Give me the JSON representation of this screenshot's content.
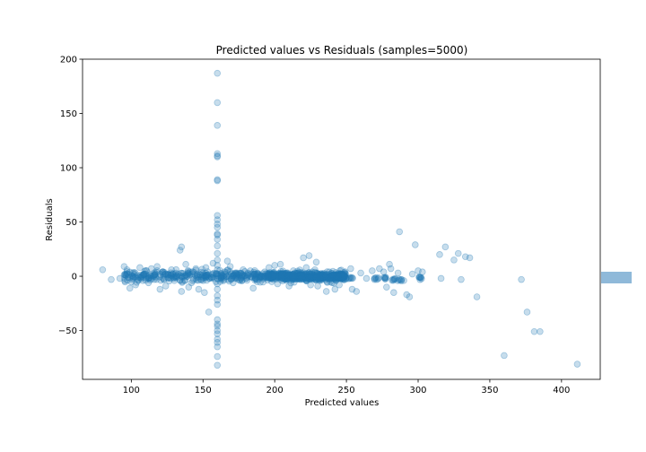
{
  "chart_data": {
    "type": "scatter",
    "title": "Predicted values vs Residuals (samples=5000)",
    "xlabel": "Predicted values",
    "ylabel": "Residuals",
    "xlim": [
      66,
      427
    ],
    "ylim": [
      -95,
      200
    ],
    "xticks": [
      100,
      150,
      200,
      250,
      300,
      350,
      400
    ],
    "yticks": [
      -50,
      0,
      50,
      100,
      150,
      200
    ],
    "ytick_labels": [
      "−50",
      "0",
      "50",
      "100",
      "150",
      "200"
    ],
    "grid": false,
    "legend": "none",
    "colors": {
      "marker": "#1f77b4",
      "marker_alpha": 0.25,
      "side_marker": "#8fb9d9"
    },
    "series": [
      {
        "points": [
          [
            80,
            6
          ],
          [
            86,
            -3
          ],
          [
            92,
            -2
          ],
          [
            95,
            9
          ],
          [
            97,
            6
          ],
          [
            99,
            -11
          ],
          [
            101,
            3
          ],
          [
            103,
            -8
          ],
          [
            106,
            8
          ],
          [
            108,
            -4
          ],
          [
            110,
            2
          ],
          [
            112,
            -6
          ],
          [
            114,
            7
          ],
          [
            116,
            -3
          ],
          [
            118,
            9
          ],
          [
            120,
            -12
          ],
          [
            122,
            4
          ],
          [
            124,
            -9
          ],
          [
            126,
            1
          ],
          [
            128,
            6
          ],
          [
            130,
            -4
          ],
          [
            134,
            24
          ],
          [
            135,
            27
          ],
          [
            135,
            -14
          ],
          [
            138,
            11
          ],
          [
            140,
            -10
          ],
          [
            142,
            -6
          ],
          [
            145,
            7
          ],
          [
            147,
            -12
          ],
          [
            150,
            3
          ],
          [
            151,
            -15
          ],
          [
            152,
            8
          ],
          [
            154,
            -33
          ],
          [
            157,
            12
          ],
          [
            159,
            -5
          ],
          [
            160,
            187
          ],
          [
            160,
            160
          ],
          [
            160,
            139
          ],
          [
            160,
            113
          ],
          [
            160,
            111
          ],
          [
            160,
            110
          ],
          [
            160,
            89
          ],
          [
            160,
            88
          ],
          [
            160,
            56
          ],
          [
            160,
            52
          ],
          [
            160,
            48
          ],
          [
            160,
            45
          ],
          [
            160,
            39
          ],
          [
            160,
            38
          ],
          [
            160,
            34
          ],
          [
            160,
            28
          ],
          [
            160,
            21
          ],
          [
            160,
            15
          ],
          [
            160,
            10
          ],
          [
            160,
            6
          ],
          [
            160,
            2
          ],
          [
            160,
            -2
          ],
          [
            160,
            -7
          ],
          [
            160,
            -12
          ],
          [
            160,
            -18
          ],
          [
            160,
            -22
          ],
          [
            160,
            -26
          ],
          [
            160,
            -40
          ],
          [
            160,
            -44
          ],
          [
            160,
            -46
          ],
          [
            160,
            -50
          ],
          [
            160,
            -53
          ],
          [
            160,
            -58
          ],
          [
            160,
            -61
          ],
          [
            160,
            -65
          ],
          [
            160,
            -74
          ],
          [
            160,
            -82
          ],
          [
            163,
            -3
          ],
          [
            165,
            4
          ],
          [
            167,
            14
          ],
          [
            169,
            9
          ],
          [
            171,
            -6
          ],
          [
            174,
            2
          ],
          [
            176,
            -4
          ],
          [
            178,
            6
          ],
          [
            180,
            -2
          ],
          [
            183,
            5
          ],
          [
            185,
            -11
          ],
          [
            188,
            3
          ],
          [
            190,
            -1
          ],
          [
            193,
            4
          ],
          [
            196,
            8
          ],
          [
            198,
            -5
          ],
          [
            200,
            10
          ],
          [
            202,
            -7
          ],
          [
            204,
            11
          ],
          [
            206,
            2
          ],
          [
            208,
            -4
          ],
          [
            210,
            -9
          ],
          [
            213,
            5
          ],
          [
            216,
            3
          ],
          [
            218,
            -3
          ],
          [
            220,
            17
          ],
          [
            222,
            8
          ],
          [
            224,
            19
          ],
          [
            225,
            -8
          ],
          [
            226,
            4
          ],
          [
            228,
            6
          ],
          [
            229,
            13
          ],
          [
            230,
            -9
          ],
          [
            232,
            2
          ],
          [
            234,
            -2
          ],
          [
            236,
            -14
          ],
          [
            238,
            4
          ],
          [
            240,
            -6
          ],
          [
            242,
            -12
          ],
          [
            244,
            -2
          ],
          [
            245,
            -8
          ],
          [
            246,
            2
          ],
          [
            248,
            -3
          ],
          [
            253,
            7
          ],
          [
            254,
            -12
          ],
          [
            257,
            -14
          ],
          [
            260,
            3
          ],
          [
            264,
            -2
          ],
          [
            268,
            5
          ],
          [
            271,
            -3
          ],
          [
            273,
            7
          ],
          [
            276,
            4
          ],
          [
            278,
            -10
          ],
          [
            280,
            11
          ],
          [
            281,
            7
          ],
          [
            283,
            -15
          ],
          [
            286,
            3
          ],
          [
            287,
            41
          ],
          [
            290,
            -4
          ],
          [
            292,
            -17
          ],
          [
            294,
            -19
          ],
          [
            296,
            2
          ],
          [
            298,
            29
          ],
          [
            300,
            5
          ],
          [
            302,
            -1
          ],
          [
            303,
            4
          ],
          [
            315,
            20
          ],
          [
            316,
            -2
          ],
          [
            319,
            27
          ],
          [
            325,
            15
          ],
          [
            328,
            21
          ],
          [
            330,
            -3
          ],
          [
            333,
            18
          ],
          [
            336,
            17
          ],
          [
            341,
            -19
          ],
          [
            360,
            -73
          ],
          [
            372,
            -3
          ],
          [
            376,
            -33
          ],
          [
            381,
            -51
          ],
          [
            385,
            -51
          ],
          [
            411,
            -81
          ]
        ]
      },
      {
        "band": [
          95,
          250
        ],
        "spread": 2.5,
        "count": 520
      },
      {
        "band": [
          195,
          250
        ],
        "spread": 1.4,
        "count": 380
      },
      {
        "clusters": [
          [
            253,
            -2
          ],
          [
            271,
            -2
          ],
          [
            277,
            -2
          ],
          [
            283,
            -3
          ],
          [
            287,
            -3
          ],
          [
            301,
            -2
          ]
        ],
        "count_each": 6
      }
    ]
  }
}
